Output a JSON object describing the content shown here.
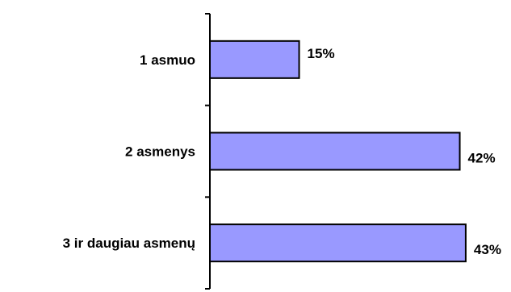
{
  "chart_data": {
    "type": "bar",
    "orientation": "horizontal",
    "categories": [
      "1 asmuo",
      "2 asmenys",
      "3 ir daugiau asmenų"
    ],
    "values": [
      15,
      42,
      43
    ],
    "value_labels": [
      "15%",
      "42%",
      "43%"
    ],
    "value_unit": "%",
    "title": "",
    "xlabel": "",
    "ylabel": "",
    "xlim": [
      0,
      50
    ],
    "grid": false,
    "legend": "none",
    "bar_color": "#9999ff",
    "bar_edge_color": "#000000"
  }
}
